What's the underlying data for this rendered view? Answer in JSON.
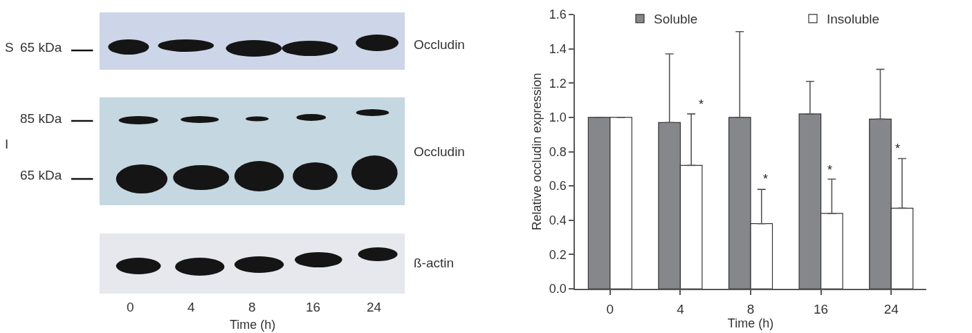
{
  "chart_data": [
    {
      "type": "other",
      "categories": [
        "0",
        "4",
        "8",
        "16",
        "24"
      ],
      "xlabel": "Time (h)",
      "annotations": [
        "S",
        "65 kDa",
        "85 kDa",
        "I",
        "65 kDa",
        "Occludin",
        "Occludin",
        "ß-actin"
      ]
    },
    {
      "type": "bar",
      "categories": [
        "0",
        "4",
        "8",
        "16",
        "24"
      ],
      "xlabel": "Time (h)",
      "ylabel": "Relative occludin expression",
      "ylim": [
        0,
        1.6
      ],
      "yticks": [
        {
          "value": 0,
          "label": "0.0"
        },
        0.2,
        0.4,
        0.6,
        0.8,
        {
          "value": 1,
          "label": "1.0"
        },
        1.2,
        1.4,
        1.6
      ],
      "series": [
        {
          "name": "Soluble",
          "color": "#86878a",
          "values": [
            1.0,
            0.97,
            1.0,
            1.02,
            0.99
          ],
          "errors": [
            null,
            [
              0.97,
              1.37
            ],
            [
              1.0,
              1.5
            ],
            [
              1.02,
              1.21
            ],
            [
              0.99,
              1.28
            ]
          ]
        },
        {
          "name": "Insoluble",
          "color": "#ffffff",
          "values": [
            1.0,
            0.72,
            0.38,
            0.44,
            0.47
          ],
          "errors": [
            null,
            [
              0.72,
              1.02
            ],
            [
              0.38,
              0.58
            ],
            [
              0.44,
              0.64
            ],
            [
              0.47,
              0.76
            ]
          ]
        }
      ],
      "annotations": [
        "*",
        "*",
        "*",
        "*"
      ],
      "legend": "top",
      "grid": false
    }
  ]
}
